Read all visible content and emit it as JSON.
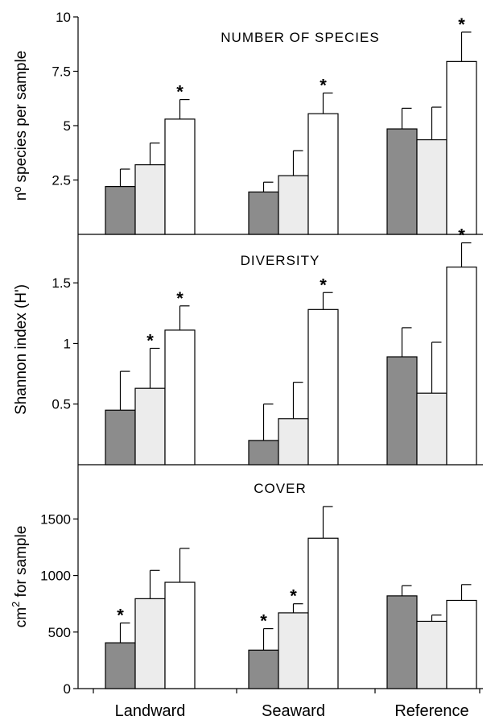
{
  "chart_data": [
    {
      "type": "bar",
      "title": "NUMBER  OF  SPECIES",
      "ylabel": "nº species per sample",
      "ylabel_sup": "",
      "ylabel_rest": "",
      "ylim": [
        0,
        10
      ],
      "yticks": [
        "2.5",
        "5",
        "7.5",
        "10"
      ],
      "yticks_values": [
        2.5,
        5,
        7.5,
        10
      ],
      "categories": [
        "Landward",
        "Seaward",
        "Reference"
      ],
      "fills": [
        "#8c8c8c",
        "#ececec",
        "#ffffff"
      ],
      "series": [
        {
          "values": [
            2.2,
            1.95,
            4.85
          ],
          "errors": [
            0.8,
            0.45,
            0.95
          ],
          "sig": [
            false,
            false,
            false
          ]
        },
        {
          "values": [
            3.2,
            2.7,
            4.35
          ],
          "errors": [
            1.0,
            1.15,
            1.5
          ],
          "sig": [
            false,
            false,
            false
          ]
        },
        {
          "values": [
            5.3,
            5.55,
            7.95
          ],
          "errors": [
            0.9,
            0.95,
            1.35
          ],
          "sig": [
            true,
            true,
            true
          ]
        }
      ]
    },
    {
      "type": "bar",
      "title": "DIVERSITY",
      "ylabel": "Shannon index (H')",
      "ylabel_sup": "",
      "ylabel_rest": "",
      "ylim": [
        0,
        1.9
      ],
      "yticks": [
        "0.5",
        "1",
        "1.5"
      ],
      "yticks_values": [
        0.5,
        1,
        1.5
      ],
      "categories": [
        "Landward",
        "Seaward",
        "Reference"
      ],
      "fills": [
        "#8c8c8c",
        "#ececec",
        "#ffffff"
      ],
      "series": [
        {
          "values": [
            0.45,
            0.2,
            0.89
          ],
          "errors": [
            0.32,
            0.3,
            0.24
          ],
          "sig": [
            false,
            false,
            false
          ]
        },
        {
          "values": [
            0.63,
            0.38,
            0.59
          ],
          "errors": [
            0.33,
            0.3,
            0.42
          ],
          "sig": [
            true,
            false,
            false
          ]
        },
        {
          "values": [
            1.11,
            1.28,
            1.63
          ],
          "errors": [
            0.2,
            0.14,
            0.2
          ],
          "sig": [
            true,
            true,
            true
          ]
        }
      ]
    },
    {
      "type": "bar",
      "title": "COVER",
      "ylabel": "cm",
      "ylabel_sup": "2",
      "ylabel_rest": " for sample",
      "ylim": [
        0,
        1980
      ],
      "yticks": [
        "0",
        "500",
        "1000",
        "1500"
      ],
      "yticks_values": [
        0,
        500,
        1000,
        1500
      ],
      "categories": [
        "Landward",
        "Seaward",
        "Reference"
      ],
      "fills": [
        "#8c8c8c",
        "#ececec",
        "#ffffff"
      ],
      "series": [
        {
          "values": [
            405,
            340,
            820
          ],
          "errors": [
            175,
            190,
            90
          ],
          "sig": [
            true,
            true,
            false
          ]
        },
        {
          "values": [
            795,
            670,
            595
          ],
          "errors": [
            250,
            80,
            55
          ],
          "sig": [
            false,
            true,
            false
          ]
        },
        {
          "values": [
            940,
            1330,
            780
          ],
          "errors": [
            300,
            280,
            140
          ],
          "sig": [
            false,
            false,
            false
          ]
        }
      ]
    }
  ],
  "x_categories": [
    "Landward",
    "Seaward",
    "Reference"
  ],
  "significance_marker": "*"
}
